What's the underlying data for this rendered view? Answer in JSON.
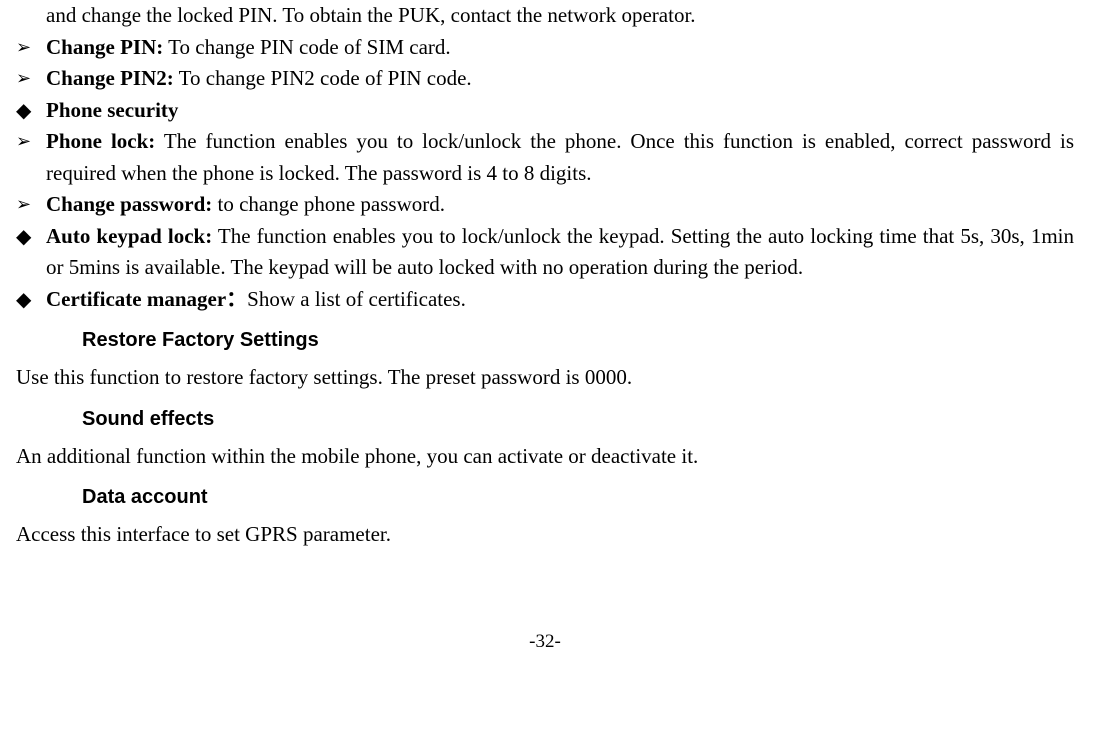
{
  "items": [
    {
      "type": "cont",
      "text": "and change the locked PIN. To obtain the PUK, contact the network operator."
    },
    {
      "type": "arrow",
      "bold": "Change PIN:",
      "text": " To change PIN code of SIM card."
    },
    {
      "type": "arrow",
      "bold": "Change PIN2:",
      "text": " To change PIN2 code of PIN code."
    },
    {
      "type": "diamond",
      "bold": "Phone security",
      "text": ""
    },
    {
      "type": "arrow",
      "bold": "Phone lock:",
      "text": " The function enables you to lock/unlock the phone. Once this function is enabled, correct password is required when the phone is locked. The password is 4 to 8 digits."
    },
    {
      "type": "arrow",
      "bold": "Change password:",
      "text": " to change phone password."
    },
    {
      "type": "diamond",
      "bold": "Auto keypad lock:",
      "text": " The function enables you to lock/unlock the keypad. Setting the auto locking time that 5s, 30s, 1min or 5mins is available. The keypad will be auto locked with no operation during the period."
    },
    {
      "type": "diamond",
      "bold": "Certificate manager：",
      "text": "Show a list of certificates."
    }
  ],
  "sections": [
    {
      "head": "Restore Factory Settings",
      "body": "Use this function to restore factory settings. The preset password is 0000."
    },
    {
      "head": "Sound effects",
      "body": "An additional function within the mobile phone, you can activate or deactivate it."
    },
    {
      "head": "Data account",
      "body": "Access this interface to set GPRS parameter."
    }
  ],
  "glyphs": {
    "arrow": "➢",
    "diamond": "◆"
  },
  "pageNumber": "-32-"
}
